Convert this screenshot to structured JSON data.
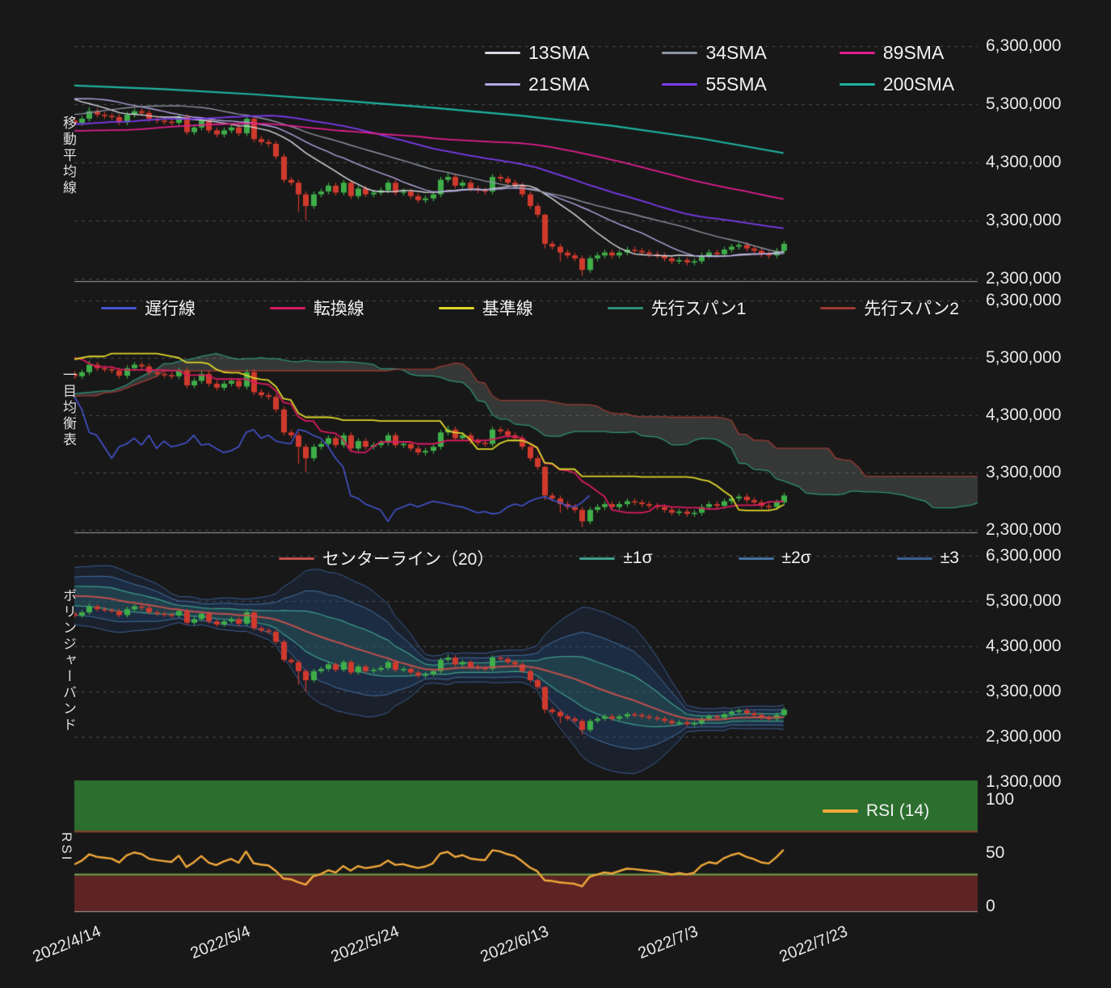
{
  "panels": {
    "ma": {
      "title": "移動平均線",
      "y_tick_labels": [
        "6,300,000",
        "5,300,000",
        "4,300,000",
        "3,300,000",
        "2,300,000"
      ],
      "legend": [
        {
          "label": "13SMA",
          "color": "#d8dbe3"
        },
        {
          "label": "21SMA",
          "color": "#b4a7e5"
        },
        {
          "label": "34SMA",
          "color": "#8e96a4"
        },
        {
          "label": "55SMA",
          "color": "#7b3ced"
        },
        {
          "label": "89SMA",
          "color": "#e01f8f"
        },
        {
          "label": "200SMA",
          "color": "#1fb3a1"
        }
      ]
    },
    "ichimoku": {
      "title": "一目均衡表",
      "y_tick_labels": [
        "6,300,000",
        "5,300,000",
        "4,300,000",
        "3,300,000",
        "2,300,000"
      ],
      "legend": [
        {
          "label": "遅行線",
          "color": "#4554d1"
        },
        {
          "label": "転換線",
          "color": "#d81b60"
        },
        {
          "label": "基準線",
          "color": "#ded62b"
        },
        {
          "label": "先行スパン1",
          "color": "#2e9077"
        },
        {
          "label": "先行スパン2",
          "color": "#9c3a32"
        }
      ]
    },
    "bollinger": {
      "title": "ボリンジャーバンド",
      "y_tick_labels": [
        "6,300,000",
        "5,300,000",
        "4,300,000",
        "3,300,000",
        "2,300,000",
        "1,300,000"
      ],
      "legend": [
        {
          "label": "センターライン（20）",
          "color": "#c0504d"
        },
        {
          "label": "±1σ",
          "color": "#3d9e8c"
        },
        {
          "label": "±2σ",
          "color": "#44719f"
        },
        {
          "label": "±3",
          "color": "#3c5e93"
        }
      ]
    },
    "rsi": {
      "title": "RSI",
      "y_tick_labels": [
        "100",
        "50",
        "0"
      ],
      "legend": [
        {
          "label": "RSI (14)",
          "color": "#f2a93b"
        }
      ]
    }
  },
  "x_tick_labels": [
    "2022/4/14",
    "2022/5/4",
    "2022/5/24",
    "2022/6/13",
    "2022/7/3",
    "2022/7/23"
  ],
  "colors": {
    "background": "#181818",
    "up": "#3fae49",
    "down": "#d03a2d",
    "grid": "#4d4d4d",
    "separator": "#a0a0a0",
    "cloud": "rgba(140,150,145,0.26)",
    "bbFill1": "rgba(45,110,95,0.30)",
    "bbFill2": "rgba(40,80,135,0.26)",
    "bbFill3": "rgba(35,65,120,0.22)",
    "rsiZoneHigh": "#2c6e2e",
    "rsiZoneLow": "#5e2423",
    "rsiLine70": "#8a3a33",
    "rsiLine30": "#6fa84e"
  },
  "chart_data": {
    "type": "candlestick",
    "unit_scale": 1000000,
    "start_date": "2022-04-11",
    "x_domain_days": 121,
    "x_tick_days": [
      3,
      23,
      43,
      63,
      83,
      103
    ],
    "history_hl_spread": 0.07,
    "candles": {
      "open": [
        5.02,
        4.98,
        5.05,
        5.18,
        5.12,
        5.1,
        5.08,
        4.99,
        5.12,
        5.18,
        5.15,
        5.05,
        5.02,
        5.0,
        4.98,
        5.08,
        4.82,
        4.9,
        5.02,
        4.85,
        4.78,
        4.85,
        4.9,
        4.8,
        5.05,
        4.7,
        4.65,
        4.62,
        4.4,
        4.0,
        3.95,
        3.75,
        3.55,
        3.75,
        3.8,
        3.9,
        3.78,
        3.95,
        3.72,
        3.85,
        3.75,
        3.78,
        3.82,
        3.95,
        3.78,
        3.8,
        3.72,
        3.65,
        3.68,
        3.75,
        4.0,
        4.05,
        3.9,
        3.95,
        3.85,
        3.82,
        3.8,
        4.05,
        4.02,
        3.95,
        3.9,
        3.75,
        3.55,
        3.4,
        2.9,
        2.85,
        2.75,
        2.7,
        2.65,
        2.45,
        2.65,
        2.7,
        2.75,
        2.7,
        2.75,
        2.8,
        2.78,
        2.75,
        2.72,
        2.7,
        2.65,
        2.6,
        2.62,
        2.58,
        2.6,
        2.7,
        2.75,
        2.72,
        2.8,
        2.85,
        2.88,
        2.82,
        2.78,
        2.72,
        2.7,
        2.78
      ],
      "close": [
        4.98,
        5.05,
        5.18,
        5.12,
        5.1,
        5.08,
        4.99,
        5.12,
        5.18,
        5.15,
        5.05,
        5.02,
        5.0,
        4.98,
        5.08,
        4.82,
        4.9,
        5.02,
        4.85,
        4.78,
        4.85,
        4.9,
        4.8,
        5.05,
        4.7,
        4.65,
        4.62,
        4.4,
        4.0,
        3.95,
        3.75,
        3.55,
        3.75,
        3.8,
        3.9,
        3.78,
        3.95,
        3.72,
        3.85,
        3.75,
        3.78,
        3.82,
        3.95,
        3.78,
        3.8,
        3.72,
        3.65,
        3.68,
        3.75,
        4.0,
        4.05,
        3.9,
        3.95,
        3.85,
        3.82,
        3.8,
        4.05,
        4.02,
        3.95,
        3.9,
        3.75,
        3.55,
        3.4,
        2.9,
        2.85,
        2.75,
        2.7,
        2.65,
        2.45,
        2.65,
        2.7,
        2.75,
        2.7,
        2.75,
        2.8,
        2.78,
        2.75,
        2.72,
        2.7,
        2.65,
        2.6,
        2.62,
        2.58,
        2.6,
        2.7,
        2.75,
        2.72,
        2.8,
        2.85,
        2.88,
        2.82,
        2.78,
        2.72,
        2.7,
        2.78,
        2.9
      ],
      "high": [
        5.07,
        5.1,
        5.25,
        5.23,
        5.17,
        5.15,
        5.13,
        5.17,
        5.23,
        5.23,
        5.2,
        5.1,
        5.07,
        5.05,
        5.13,
        5.13,
        4.95,
        5.07,
        5.07,
        4.9,
        4.9,
        4.95,
        4.95,
        5.1,
        5.1,
        4.75,
        4.7,
        4.67,
        4.45,
        4.05,
        4.0,
        3.8,
        3.8,
        3.85,
        3.95,
        3.95,
        4.0,
        4.0,
        3.9,
        3.9,
        3.83,
        3.87,
        4.0,
        4.0,
        3.85,
        3.85,
        3.77,
        3.73,
        3.8,
        4.05,
        4.12,
        4.1,
        4.0,
        4.0,
        3.9,
        3.87,
        4.1,
        4.1,
        4.07,
        4.0,
        3.95,
        3.8,
        3.6,
        3.42,
        2.95,
        2.9,
        2.8,
        2.75,
        2.7,
        2.7,
        2.75,
        2.8,
        2.8,
        2.8,
        2.85,
        2.85,
        2.83,
        2.8,
        2.77,
        2.75,
        2.7,
        2.67,
        2.67,
        2.65,
        2.75,
        2.8,
        2.8,
        2.85,
        2.9,
        2.93,
        2.93,
        2.87,
        2.83,
        2.77,
        2.83,
        2.95
      ],
      "low": [
        4.93,
        4.93,
        5.0,
        5.07,
        5.05,
        5.03,
        4.94,
        4.94,
        5.07,
        5.1,
        5.0,
        4.97,
        4.95,
        4.93,
        4.93,
        4.77,
        4.77,
        4.85,
        4.8,
        4.73,
        4.73,
        4.8,
        4.75,
        4.75,
        4.65,
        4.6,
        4.57,
        4.35,
        3.95,
        3.9,
        3.45,
        3.3,
        3.5,
        3.7,
        3.75,
        3.73,
        3.73,
        3.67,
        3.67,
        3.7,
        3.7,
        3.73,
        3.77,
        3.73,
        3.73,
        3.67,
        3.6,
        3.6,
        3.63,
        3.7,
        3.95,
        3.85,
        3.85,
        3.8,
        3.77,
        3.75,
        3.75,
        3.97,
        3.9,
        3.85,
        3.7,
        3.5,
        3.35,
        2.82,
        2.8,
        2.6,
        2.65,
        2.6,
        2.35,
        2.4,
        2.6,
        2.65,
        2.65,
        2.65,
        2.7,
        2.73,
        2.7,
        2.67,
        2.65,
        2.6,
        2.55,
        2.55,
        2.53,
        2.53,
        2.55,
        2.65,
        2.67,
        2.67,
        2.75,
        2.8,
        2.77,
        2.73,
        2.67,
        2.65,
        2.65,
        2.73
      ]
    },
    "history_close": [
      4.95,
      4.9,
      4.92,
      4.85,
      4.96,
      4.98,
      4.9,
      4.85,
      4.8,
      4.75,
      4.4,
      4.1,
      4.05,
      4.15,
      4.2,
      4.25,
      4.18,
      4.28,
      4.3,
      4.35,
      4.4,
      4.45,
      4.5,
      4.55,
      4.7,
      4.75,
      4.85,
      5.05,
      5.1,
      5.05,
      5.0,
      4.85,
      4.85,
      4.9,
      4.85,
      5.1,
      5.05,
      4.7,
      4.6,
      4.6,
      4.65,
      4.95,
      4.85,
      4.8,
      4.45,
      4.55,
      4.5,
      4.45,
      4.98,
      5.1,
      5.05,
      4.9,
      4.55,
      4.5,
      4.45,
      4.4,
      4.45,
      4.7,
      4.55,
      4.5,
      4.5,
      4.45,
      4.55,
      4.6,
      4.75,
      4.8,
      4.85,
      4.9,
      4.95,
      4.9,
      5.05,
      5.15,
      5.25,
      5.35,
      5.45,
      5.55,
      5.75,
      5.7,
      5.65,
      5.55,
      5.6,
      5.55,
      5.6,
      5.55,
      5.4,
      5.3,
      5.25,
      5.28,
      5.2,
      5.1
    ],
    "panels": {
      "ma": {
        "y_ticks": [
          6300000,
          5300000,
          4300000,
          3300000,
          2300000
        ],
        "sma_periods": [
          13,
          21,
          34,
          55,
          89
        ],
        "sma200_points": [
          [
            0,
            5.62
          ],
          [
            12,
            5.56
          ],
          [
            24,
            5.47
          ],
          [
            36,
            5.36
          ],
          [
            48,
            5.24
          ],
          [
            60,
            5.1
          ],
          [
            72,
            4.93
          ],
          [
            84,
            4.71
          ],
          [
            95,
            4.46
          ]
        ]
      },
      "ichimoku": {
        "y_ticks": [
          6300000,
          5300000,
          4300000,
          3300000,
          2300000
        ],
        "params": {
          "tenkan": 9,
          "kijun": 26,
          "senkou_b": 52,
          "shift": 26
        }
      },
      "bollinger": {
        "y_ticks": [
          6300000,
          5300000,
          4300000,
          3300000,
          2300000,
          1300000
        ],
        "period": 20,
        "sigmas": [
          1,
          2,
          3
        ]
      },
      "rsi": {
        "y_ticks": [
          100,
          50,
          0
        ],
        "period": 14,
        "overbought": 70,
        "oversold": 30
      }
    }
  }
}
